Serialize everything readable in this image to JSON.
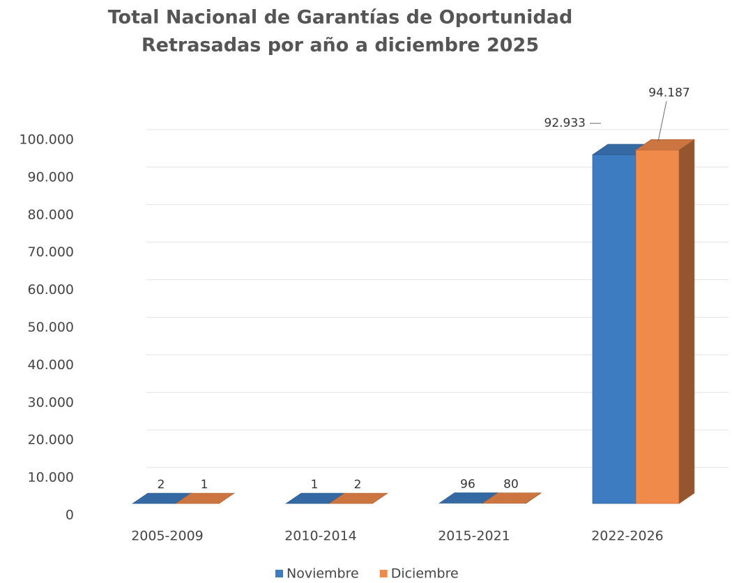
{
  "chart_data": {
    "type": "bar3d",
    "title": "Total Nacional de Garantías de Oportunidad",
    "subtitle": "Retrasadas por año a diciembre 2025",
    "categories": [
      "2005-2009",
      "2010-2014",
      "2015-2021",
      "2022-2026"
    ],
    "series": [
      {
        "name": "Noviembre",
        "color": "#3d7cc0",
        "values": [
          2,
          1,
          96,
          92933
        ],
        "value_labels": [
          "2",
          "1",
          "96",
          "92.933"
        ]
      },
      {
        "name": "Diciembre",
        "color": "#f08a4b",
        "values": [
          1,
          2,
          80,
          94187
        ],
        "value_labels": [
          "1",
          "2",
          "80",
          "94.187"
        ]
      }
    ],
    "ylim": [
      0,
      110000
    ],
    "yticks": [
      0,
      {
        "value": 10000,
        "label": "10.000"
      },
      {
        "value": 20000,
        "label": "20.000"
      },
      {
        "value": 30000,
        "label": "30.000"
      },
      {
        "value": 40000,
        "label": "40.000"
      },
      {
        "value": 50000,
        "label": "50.000"
      },
      {
        "value": 60000,
        "label": "60.000"
      },
      {
        "value": 70000,
        "label": "70.000"
      },
      {
        "value": 80000,
        "label": "80.000"
      },
      {
        "value": 90000,
        "label": "90.000"
      },
      {
        "value": 100000,
        "label": "100.000"
      }
    ],
    "grid": true,
    "legend": "bottom"
  }
}
